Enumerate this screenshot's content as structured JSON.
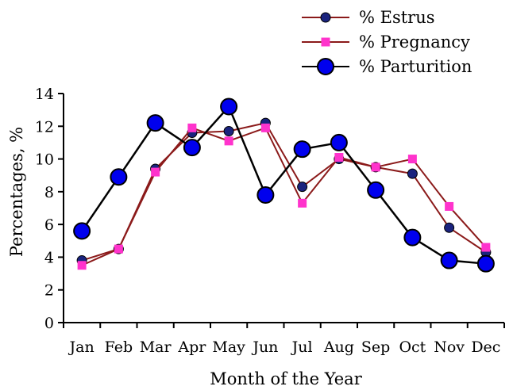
{
  "chart_data": {
    "type": "line",
    "title": "",
    "xlabel": "Month of the Year",
    "ylabel": "Percentages, %",
    "ylim": [
      0,
      14
    ],
    "yticks": [
      "0",
      "2",
      "4",
      "6",
      "8",
      "10",
      "12",
      "14"
    ],
    "categories": [
      "Jan",
      "Feb",
      "Mar",
      "Apr",
      "May",
      "Jun",
      "Jul",
      "Aug",
      "Sep",
      "Oct",
      "Nov",
      "Dec"
    ],
    "grid": false,
    "legend_position": "top-right",
    "series": [
      {
        "name": "% Estrus",
        "marker": "small-circle",
        "marker_color": "#1a237e",
        "line_color": "#8b1a1a",
        "values": [
          3.8,
          4.5,
          9.4,
          11.6,
          11.7,
          12.2,
          8.3,
          10.0,
          9.5,
          9.1,
          5.8,
          4.3
        ]
      },
      {
        "name": "% Pregnancy",
        "marker": "square",
        "marker_color": "#ff33cc",
        "line_color": "#8b1a1a",
        "values": [
          3.5,
          4.5,
          9.2,
          11.9,
          11.1,
          11.9,
          7.3,
          10.1,
          9.5,
          10.0,
          7.1,
          4.6
        ]
      },
      {
        "name": "% Parturition",
        "marker": "large-circle",
        "marker_color": "#0000ee",
        "line_color": "#000000",
        "values": [
          5.6,
          8.9,
          12.2,
          10.7,
          13.2,
          7.8,
          10.6,
          11.0,
          8.1,
          5.2,
          3.8,
          3.6
        ]
      }
    ]
  }
}
